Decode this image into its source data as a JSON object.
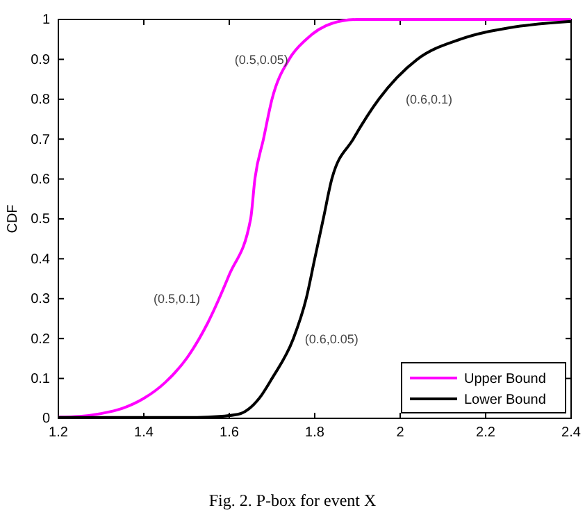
{
  "chart_data": {
    "type": "line",
    "ylabel": "CDF",
    "xlim": [
      1.2,
      2.4
    ],
    "ylim": [
      0,
      1
    ],
    "xticks": [
      1.2,
      1.4,
      1.6,
      1.8,
      2,
      2.2,
      2.4
    ],
    "yticks": [
      0,
      0.1,
      0.2,
      0.3,
      0.4,
      0.5,
      0.6,
      0.7,
      0.8,
      0.9,
      1
    ],
    "grid": false,
    "legend": "bottom right",
    "marker": "none",
    "line_style": "solid",
    "series": [
      {
        "name": "Upper Bound",
        "color": "#ff00ff",
        "x": [
          1.2,
          1.25,
          1.3,
          1.35,
          1.4,
          1.45,
          1.5,
          1.55,
          1.6,
          1.65,
          1.66,
          1.68,
          1.7,
          1.74,
          1.78,
          1.84,
          1.9,
          2.4
        ],
        "values": [
          0.003,
          0.005,
          0.012,
          0.025,
          0.05,
          0.09,
          0.15,
          0.24,
          0.36,
          0.5,
          0.6,
          0.7,
          0.8,
          0.9,
          0.95,
          0.99,
          1,
          1
        ]
      },
      {
        "name": "Lower Bound",
        "color": "#000000",
        "x": [
          1.2,
          1.5,
          1.55,
          1.62,
          1.67,
          1.7,
          1.75,
          1.78,
          1.8,
          1.82,
          1.84,
          1.89,
          1.95,
          2.04,
          2.14,
          2.26,
          2.4
        ],
        "values": [
          0.002,
          0.002,
          0.003,
          0.01,
          0.05,
          0.1,
          0.2,
          0.3,
          0.4,
          0.5,
          0.6,
          0.7,
          0.8,
          0.9,
          0.95,
          0.98,
          0.995
        ]
      }
    ],
    "annotations": [
      "(0.5,0.05)",
      "(0.6,0.1)",
      "(0.5,0.1)",
      "(0.6,0.05)",
      "Fig. 2.   P-box for event X"
    ]
  }
}
